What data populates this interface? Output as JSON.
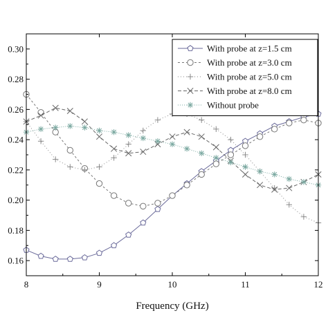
{
  "chart_data": {
    "type": "line",
    "title": "",
    "xlabel": "Frequency (GHz)",
    "ylabel": "",
    "xlim": [
      8,
      12
    ],
    "ylim": [
      0.15,
      0.31
    ],
    "xticks": [
      "8",
      "9",
      "10",
      "11",
      "12"
    ],
    "yticks": [
      "0.16",
      "0.18",
      "0.20",
      "0.22",
      "0.24",
      "0.26",
      "0.28",
      "0.30"
    ],
    "xtick_values": [
      8,
      9,
      10,
      11,
      12
    ],
    "ytick_values": [
      0.16,
      0.18,
      0.2,
      0.22,
      0.24,
      0.26,
      0.28,
      0.3
    ],
    "grid": false,
    "legend_position": "top-right",
    "x": [
      8.0,
      8.2,
      8.4,
      8.6,
      8.8,
      9.0,
      9.2,
      9.4,
      9.6,
      9.8,
      10.0,
      10.2,
      10.4,
      10.6,
      10.8,
      11.0,
      11.2,
      11.4,
      11.6,
      11.8,
      12.0
    ],
    "series": [
      {
        "name": "With probe at z=1.5 cm",
        "marker": "pentagon",
        "dash": "",
        "values": [
          0.167,
          0.163,
          0.161,
          0.161,
          0.162,
          0.165,
          0.17,
          0.177,
          0.185,
          0.194,
          0.203,
          0.211,
          0.219,
          0.226,
          0.233,
          0.239,
          0.244,
          0.249,
          0.252,
          0.255,
          0.257
        ]
      },
      {
        "name": "With probe at z=3.0 cm",
        "marker": "circle",
        "dash": "3,3",
        "values": [
          0.27,
          0.258,
          0.245,
          0.233,
          0.221,
          0.211,
          0.203,
          0.198,
          0.196,
          0.198,
          0.203,
          0.21,
          0.217,
          0.224,
          0.23,
          0.236,
          0.242,
          0.247,
          0.251,
          0.253,
          0.251
        ]
      },
      {
        "name": "With probe at z=5.0 cm",
        "marker": "plus",
        "dash": "1,3",
        "values": [
          0.252,
          0.239,
          0.227,
          0.222,
          0.22,
          0.222,
          0.228,
          0.237,
          0.246,
          0.253,
          0.257,
          0.257,
          0.253,
          0.247,
          0.24,
          0.23,
          0.219,
          0.208,
          0.197,
          0.189,
          0.185
        ]
      },
      {
        "name": "With probe at z=8.0 cm",
        "marker": "x",
        "dash": "5,3",
        "values": [
          0.252,
          0.256,
          0.261,
          0.259,
          0.252,
          0.242,
          0.234,
          0.231,
          0.232,
          0.237,
          0.242,
          0.245,
          0.242,
          0.235,
          0.226,
          0.217,
          0.21,
          0.207,
          0.208,
          0.212,
          0.217
        ]
      },
      {
        "name": "Without probe",
        "marker": "asterisk",
        "dash": "1,2",
        "values": [
          0.245,
          0.247,
          0.248,
          0.249,
          0.248,
          0.246,
          0.245,
          0.243,
          0.241,
          0.239,
          0.237,
          0.234,
          0.231,
          0.228,
          0.225,
          0.222,
          0.219,
          0.217,
          0.214,
          0.212,
          0.21
        ]
      }
    ]
  }
}
